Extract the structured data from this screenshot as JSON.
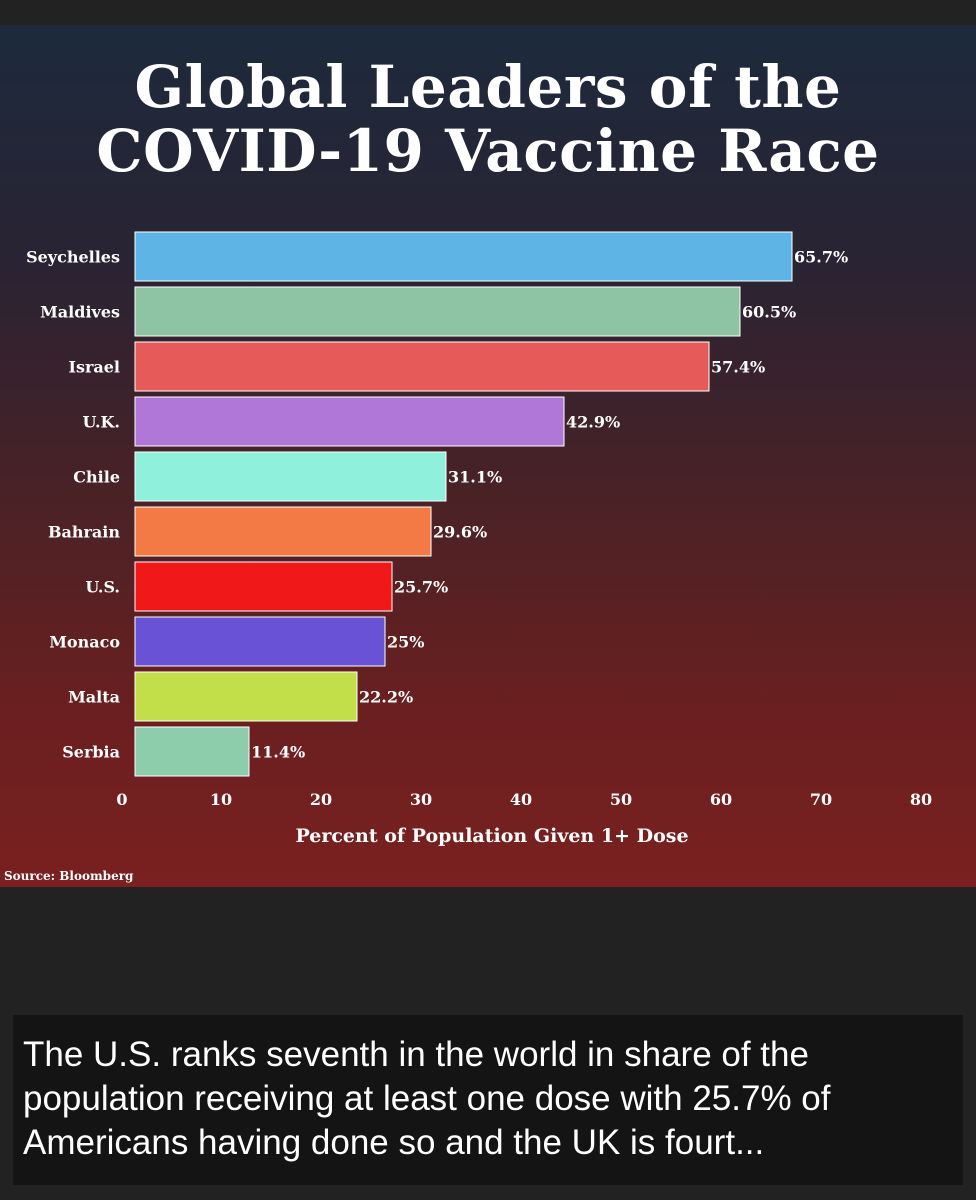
{
  "title_line1": "Global Leaders of the",
  "title_line2": "COVID-19 Vaccine Race",
  "source": "Source: Bloomberg",
  "caption": "The U.S. ranks seventh in the world in share of the population receiving at least one dose with 25.7% of Americans having done so and the UK is fourt...",
  "chart_data": {
    "type": "bar",
    "orientation": "horizontal",
    "title": "Global Leaders of the COVID-19 Vaccine Race",
    "xlabel": "Percent of Population Given 1+ Dose",
    "ylabel": "",
    "xlim": [
      0,
      80
    ],
    "xticks": [
      0,
      10,
      20,
      30,
      40,
      50,
      60,
      70,
      80
    ],
    "categories": [
      "Seychelles",
      "Maldives",
      "Israel",
      "U.K.",
      "Chile",
      "Bahrain",
      "U.S.",
      "Monaco",
      "Malta",
      "Serbia"
    ],
    "values": [
      65.7,
      60.5,
      57.4,
      42.9,
      31.1,
      29.6,
      25.7,
      25,
      22.2,
      11.4
    ],
    "value_labels": [
      "65.7%",
      "60.5%",
      "57.4%",
      "42.9%",
      "31.1%",
      "29.6%",
      "25.7%",
      "25%",
      "22.2%",
      "11.4%"
    ],
    "colors": [
      "#5fb4e6",
      "#8ec3a3",
      "#e65a5a",
      "#b077d9",
      "#8ff0dc",
      "#f47a45",
      "#f01818",
      "#6a52d6",
      "#c2df4a",
      "#8ecdac"
    ]
  }
}
